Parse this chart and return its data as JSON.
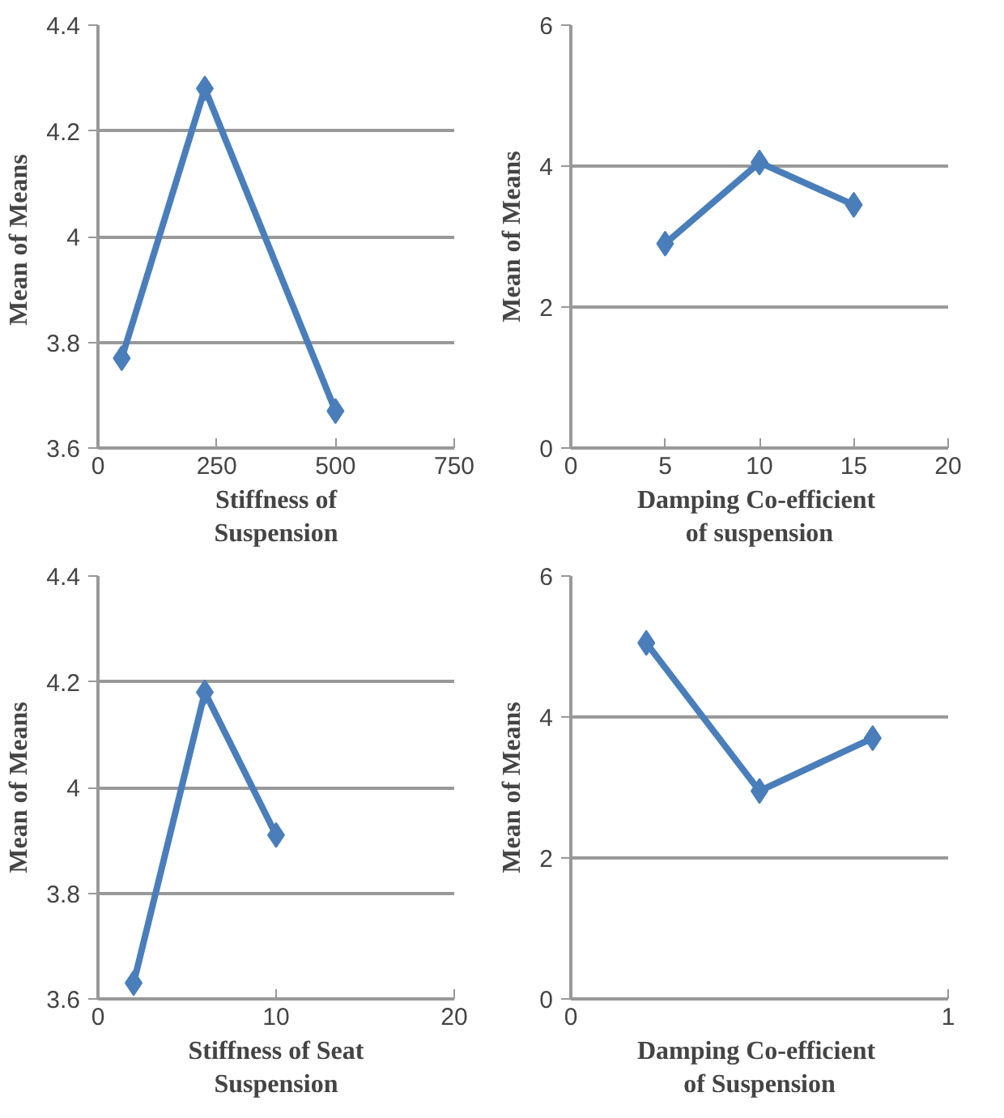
{
  "chart_data": [
    {
      "type": "line",
      "x": [
        50,
        225,
        500
      ],
      "series": [
        {
          "color": "#4a7ebb",
          "values": [
            3.77,
            4.28,
            3.67
          ]
        }
      ],
      "xlim": [
        0,
        750
      ],
      "xticks": [
        0,
        250,
        500,
        750
      ],
      "ylim": [
        3.6,
        4.4
      ],
      "yticks": [
        3.6,
        3.8,
        {
          "value": 4,
          "label": "4"
        },
        4.2,
        4.4
      ],
      "xlabel": "Stiffness of\nSuspension",
      "ylabel": "Mean  of Means",
      "grid": "y",
      "marker": "diamond",
      "line_style": "solid"
    },
    {
      "type": "line",
      "x": [
        5,
        10,
        15
      ],
      "series": [
        {
          "color": "#4a7ebb",
          "values": [
            2.9,
            4.05,
            3.45
          ]
        }
      ],
      "xlim": [
        0,
        20
      ],
      "xticks": [
        0,
        5,
        10,
        15,
        20
      ],
      "ylim": [
        0,
        6
      ],
      "yticks": [
        0,
        2,
        4,
        6
      ],
      "xlabel": "Damping  Co-efficient\nof suspension",
      "ylabel": "Mean of Means",
      "grid": "y",
      "marker": "diamond",
      "line_style": "solid"
    },
    {
      "type": "line",
      "x": [
        2,
        6,
        10
      ],
      "series": [
        {
          "color": "#4a7ebb",
          "values": [
            3.63,
            4.18,
            3.91
          ]
        }
      ],
      "xlim": [
        0,
        20
      ],
      "xticks": [
        0,
        10,
        20
      ],
      "ylim": [
        3.6,
        4.4
      ],
      "yticks": [
        3.6,
        3.8,
        {
          "value": 4,
          "label": "4"
        },
        4.2,
        4.4
      ],
      "xlabel": "Stiffness of Seat\nSuspension",
      "ylabel": "Mean of Means",
      "grid": "y",
      "marker": "diamond",
      "line_style": "solid"
    },
    {
      "type": "line",
      "x": [
        0.2,
        0.5,
        0.8
      ],
      "series": [
        {
          "color": "#4a7ebb",
          "values": [
            5.05,
            2.95,
            3.7
          ]
        }
      ],
      "xlim": [
        0,
        1
      ],
      "xticks": [
        0,
        1
      ],
      "ylim": [
        0,
        6
      ],
      "yticks": [
        0,
        2,
        4,
        6
      ],
      "xlabel": "Damping  Co-efficient\nof Suspension",
      "ylabel": "Mean of Means",
      "grid": "y",
      "marker": "diamond",
      "line_style": "solid"
    }
  ]
}
